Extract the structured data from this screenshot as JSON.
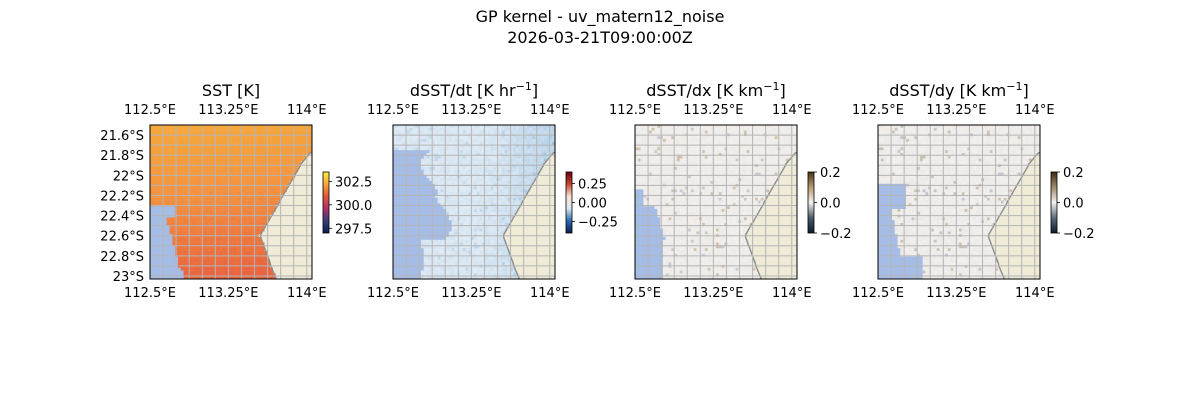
{
  "figure": {
    "title": "GP kernel - uv_matern12_noise",
    "subtitle": "2026-03-21T09:00:00Z"
  },
  "colors": {
    "land": "#efebd7",
    "coast": "#8c8c8c",
    "mask": "#a5bde6",
    "grid": "#b5b5b5"
  },
  "chart_data": [
    {
      "type": "heatmap",
      "title_main": "SST [K]",
      "title_sup": "",
      "title_tail": "",
      "xticks": [
        "112.5°E",
        "113.25°E",
        "114°E"
      ],
      "yticks": [
        "21.6°S",
        "21.8°S",
        "22°S",
        "22.2°S",
        "22.4°S",
        "22.6°S",
        "22.8°S",
        "23°S"
      ],
      "xlim": [
        112.5,
        114.05
      ],
      "ylim": [
        -23.03,
        -21.5
      ],
      "colorbar": {
        "ticks": [
          "302.5",
          "300.0",
          "297.5"
        ],
        "range": [
          297,
          303.5
        ],
        "colors": [
          "#0b1f4f",
          "#3a3c7a",
          "#b0306a",
          "#e2553a",
          "#f7a63a",
          "#f8f03a"
        ]
      },
      "palette": "sst"
    },
    {
      "type": "heatmap",
      "title_main": "dSST/dt [K hr",
      "title_sup": "−1",
      "title_tail": "]",
      "xticks": [
        "112.5°E",
        "113.25°E",
        "114°E"
      ],
      "yticks": [],
      "xlim": [
        112.5,
        114.05
      ],
      "ylim": [
        -23.03,
        -21.5
      ],
      "colorbar": {
        "ticks": [
          "0.25",
          "0.00",
          "−0.25"
        ],
        "range": [
          -0.4,
          0.4
        ],
        "colors": [
          "#07204f",
          "#2c6ab0",
          "#d8e6f2",
          "#fbe2d5",
          "#c8452f",
          "#67000d"
        ]
      },
      "palette": "dt"
    },
    {
      "type": "heatmap",
      "title_main": "dSST/dx [K km",
      "title_sup": "−1",
      "title_tail": "]",
      "xticks": [
        "112.5°E",
        "113.25°E",
        "114°E"
      ],
      "yticks": [],
      "xlim": [
        112.5,
        114.05
      ],
      "ylim": [
        -23.03,
        -21.5
      ],
      "colorbar": {
        "ticks": [
          "0.2",
          "0.0",
          "−0.2"
        ],
        "range": [
          -0.2,
          0.2
        ],
        "colors": [
          "#0d1a2e",
          "#4a5c6e",
          "#f4f1ee",
          "#b99a73",
          "#4a3215"
        ]
      },
      "palette": "dx"
    },
    {
      "type": "heatmap",
      "title_main": "dSST/dy [K km",
      "title_sup": "−1",
      "title_tail": "]",
      "xticks": [
        "112.5°E",
        "113.25°E",
        "114°E"
      ],
      "yticks": [],
      "xlim": [
        112.5,
        114.05
      ],
      "ylim": [
        -23.03,
        -21.5
      ],
      "colorbar": {
        "ticks": [
          "0.2",
          "0.0",
          "−0.2"
        ],
        "range": [
          -0.2,
          0.2
        ],
        "colors": [
          "#0d1a2e",
          "#5d6c7a",
          "#f4f1ee",
          "#a08a6a",
          "#3d2c14"
        ]
      },
      "palette": "dy"
    }
  ]
}
